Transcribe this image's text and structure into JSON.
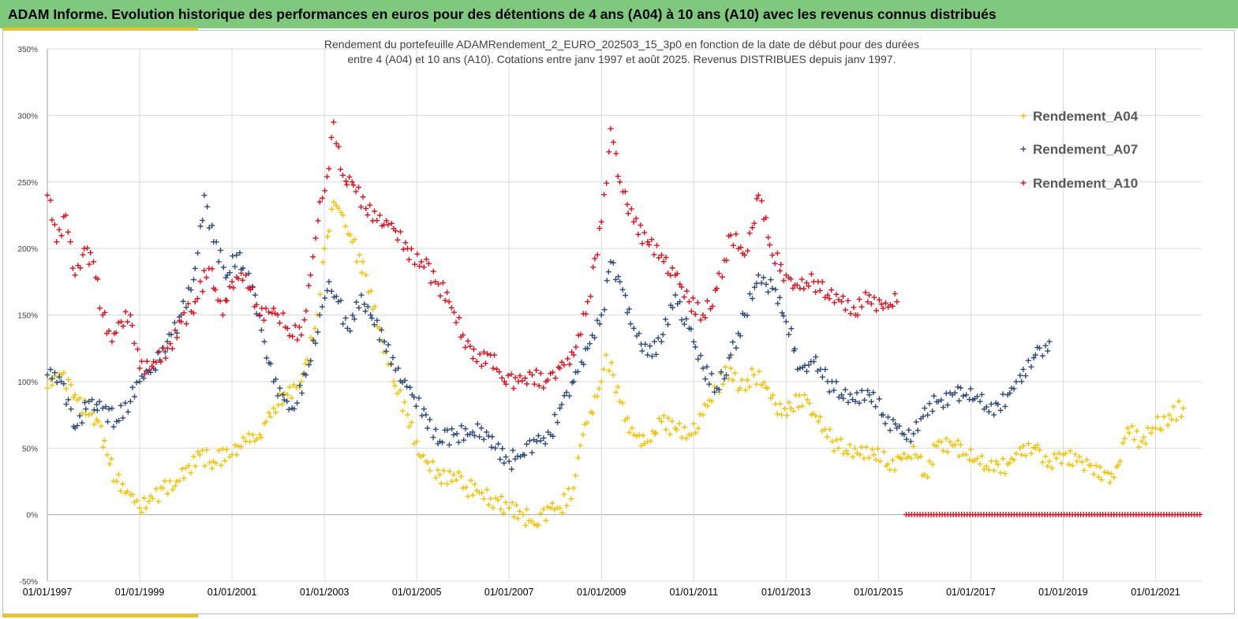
{
  "header": {
    "title": "ADAM Informe. Evolution historique des performances en euros pour des détentions de 4 ans (A04) à 10 ans (A10) avec les revenus connus distribués"
  },
  "colors": {
    "header_bg": "#7ec97e",
    "accent": "#f5c400",
    "a04": "#f2c200",
    "a07": "#2e4a7a",
    "a10": "#e0101f"
  },
  "chart_data": {
    "type": "scatter",
    "title_line1": "Rendement du portefeuille ADAMRendement_2_EURO_202503_15_3p0  en fonction de la date de début pour des durées",
    "title_line2": "entre 4 (A04) et 10 ans (A10). Cotations  entre janv 1997 et août 2025. Revenus DISTRIBUES depuis janv 1997.",
    "marker": "+",
    "x_axis": {
      "type": "date",
      "range": [
        "1997-01-01",
        "2022-01-01"
      ],
      "ticks": [
        "01/01/1997",
        "01/01/1999",
        "01/01/2001",
        "01/01/2003",
        "01/01/2005",
        "01/01/2007",
        "01/01/2009",
        "01/01/2011",
        "01/01/2013",
        "01/01/2015",
        "01/01/2017",
        "01/01/2019",
        "01/01/2021"
      ]
    },
    "y_axis": {
      "range": [
        -50,
        350
      ],
      "unit": "%",
      "ticks": [
        "-50%",
        "0%",
        "50%",
        "100%",
        "150%",
        "200%",
        "250%",
        "300%",
        "350%"
      ]
    },
    "grid": true,
    "legend": {
      "placement": "right",
      "entries": [
        "Rendement_A04",
        "Rendement_A07",
        "Rendement_A10"
      ]
    },
    "series": [
      {
        "name": "Rendement_A04",
        "color": "#f2c200",
        "points": [
          [
            1997.0,
            95
          ],
          [
            1997.3,
            105
          ],
          [
            1997.6,
            90
          ],
          [
            1997.9,
            75
          ],
          [
            1998.1,
            70
          ],
          [
            1998.3,
            45
          ],
          [
            1998.5,
            25
          ],
          [
            1998.8,
            15
          ],
          [
            1999.0,
            5
          ],
          [
            1999.2,
            10
          ],
          [
            1999.5,
            20
          ],
          [
            1999.8,
            25
          ],
          [
            2000.0,
            35
          ],
          [
            2000.3,
            45
          ],
          [
            2000.6,
            40
          ],
          [
            2001.0,
            45
          ],
          [
            2001.3,
            55
          ],
          [
            2001.6,
            60
          ],
          [
            2001.9,
            80
          ],
          [
            2002.2,
            90
          ],
          [
            2002.5,
            100
          ],
          [
            2002.8,
            140
          ],
          [
            2003.0,
            200
          ],
          [
            2003.2,
            235
          ],
          [
            2003.4,
            225
          ],
          [
            2003.6,
            205
          ],
          [
            2003.9,
            180
          ],
          [
            2004.2,
            140
          ],
          [
            2004.5,
            100
          ],
          [
            2004.8,
            75
          ],
          [
            2005.0,
            55
          ],
          [
            2005.2,
            40
          ],
          [
            2005.5,
            30
          ],
          [
            2005.8,
            30
          ],
          [
            2006.0,
            20
          ],
          [
            2006.3,
            18
          ],
          [
            2006.6,
            12
          ],
          [
            2007.0,
            5
          ],
          [
            2007.3,
            0
          ],
          [
            2007.6,
            -8
          ],
          [
            2007.9,
            5
          ],
          [
            2008.1,
            5
          ],
          [
            2008.4,
            20
          ],
          [
            2008.6,
            60
          ],
          [
            2009.0,
            100
          ],
          [
            2009.1,
            120
          ],
          [
            2009.4,
            85
          ],
          [
            2009.7,
            60
          ],
          [
            2010.0,
            55
          ],
          [
            2010.3,
            70
          ],
          [
            2010.6,
            65
          ],
          [
            2010.9,
            60
          ],
          [
            2011.2,
            75
          ],
          [
            2011.5,
            95
          ],
          [
            2011.8,
            110
          ],
          [
            2012.0,
            95
          ],
          [
            2012.3,
            105
          ],
          [
            2012.6,
            95
          ],
          [
            2012.9,
            75
          ],
          [
            2013.1,
            80
          ],
          [
            2013.4,
            90
          ],
          [
            2013.7,
            70
          ],
          [
            2014.0,
            55
          ],
          [
            2014.3,
            48
          ],
          [
            2014.6,
            45
          ],
          [
            2014.9,
            45
          ],
          [
            2015.2,
            38
          ],
          [
            2015.5,
            42
          ],
          [
            2015.8,
            45
          ],
          [
            2016.0,
            30
          ],
          [
            2016.3,
            55
          ],
          [
            2016.6,
            52
          ],
          [
            2016.9,
            45
          ],
          [
            2017.2,
            38
          ],
          [
            2017.5,
            33
          ],
          [
            2017.8,
            38
          ],
          [
            2018.1,
            45
          ],
          [
            2018.4,
            50
          ],
          [
            2018.7,
            40
          ],
          [
            2019.0,
            45
          ],
          [
            2019.3,
            40
          ],
          [
            2019.6,
            37
          ],
          [
            2019.9,
            32
          ],
          [
            2020.1,
            28
          ],
          [
            2020.4,
            65
          ],
          [
            2020.7,
            55
          ],
          [
            2021.0,
            65
          ],
          [
            2021.3,
            75
          ],
          [
            2021.6,
            80
          ]
        ]
      },
      {
        "name": "Rendement_A07",
        "color": "#2e4a7a",
        "points": [
          [
            1997.0,
            105
          ],
          [
            1997.3,
            100
          ],
          [
            1997.6,
            65
          ],
          [
            1997.9,
            85
          ],
          [
            1998.2,
            80
          ],
          [
            1998.5,
            70
          ],
          [
            1998.8,
            85
          ],
          [
            1999.0,
            100
          ],
          [
            1999.3,
            110
          ],
          [
            1999.6,
            130
          ],
          [
            1999.9,
            150
          ],
          [
            2000.2,
            185
          ],
          [
            2000.4,
            240
          ],
          [
            2000.6,
            205
          ],
          [
            2000.9,
            180
          ],
          [
            2001.1,
            195
          ],
          [
            2001.3,
            180
          ],
          [
            2001.5,
            165
          ],
          [
            2001.7,
            130
          ],
          [
            2001.9,
            100
          ],
          [
            2002.1,
            90
          ],
          [
            2002.3,
            80
          ],
          [
            2002.6,
            105
          ],
          [
            2002.9,
            150
          ],
          [
            2003.1,
            175
          ],
          [
            2003.3,
            160
          ],
          [
            2003.5,
            140
          ],
          [
            2003.8,
            165
          ],
          [
            2004.0,
            150
          ],
          [
            2004.3,
            130
          ],
          [
            2004.6,
            110
          ],
          [
            2004.9,
            90
          ],
          [
            2005.2,
            75
          ],
          [
            2005.5,
            55
          ],
          [
            2005.8,
            60
          ],
          [
            2006.1,
            60
          ],
          [
            2006.4,
            65
          ],
          [
            2006.7,
            50
          ],
          [
            2007.0,
            40
          ],
          [
            2007.3,
            45
          ],
          [
            2007.6,
            55
          ],
          [
            2007.9,
            60
          ],
          [
            2008.1,
            80
          ],
          [
            2008.4,
            100
          ],
          [
            2008.7,
            125
          ],
          [
            2009.0,
            150
          ],
          [
            2009.2,
            190
          ],
          [
            2009.4,
            175
          ],
          [
            2009.7,
            140
          ],
          [
            2010.0,
            120
          ],
          [
            2010.3,
            130
          ],
          [
            2010.6,
            165
          ],
          [
            2010.9,
            140
          ],
          [
            2011.2,
            110
          ],
          [
            2011.5,
            95
          ],
          [
            2011.8,
            120
          ],
          [
            2012.1,
            150
          ],
          [
            2012.4,
            180
          ],
          [
            2012.7,
            170
          ],
          [
            2013.0,
            145
          ],
          [
            2013.3,
            110
          ],
          [
            2013.6,
            115
          ],
          [
            2013.9,
            100
          ],
          [
            2014.2,
            90
          ],
          [
            2014.5,
            85
          ],
          [
            2014.8,
            90
          ],
          [
            2015.1,
            75
          ],
          [
            2015.4,
            65
          ],
          [
            2015.7,
            55
          ],
          [
            2016.0,
            80
          ],
          [
            2016.3,
            85
          ],
          [
            2016.6,
            90
          ],
          [
            2016.9,
            90
          ],
          [
            2017.2,
            85
          ],
          [
            2017.5,
            75
          ],
          [
            2017.8,
            90
          ],
          [
            2018.1,
            100
          ],
          [
            2018.4,
            120
          ],
          [
            2018.7,
            130
          ]
        ]
      },
      {
        "name": "Rendement_A10",
        "color": "#e0101f",
        "points": [
          [
            1997.0,
            240
          ],
          [
            1997.2,
            205
          ],
          [
            1997.4,
            225
          ],
          [
            1997.6,
            180
          ],
          [
            1997.8,
            200
          ],
          [
            1998.0,
            190
          ],
          [
            1998.2,
            150
          ],
          [
            1998.4,
            130
          ],
          [
            1998.6,
            145
          ],
          [
            1998.8,
            150
          ],
          [
            1999.0,
            110
          ],
          [
            1999.3,
            115
          ],
          [
            1999.6,
            125
          ],
          [
            1999.9,
            145
          ],
          [
            2000.2,
            160
          ],
          [
            2000.5,
            185
          ],
          [
            2000.8,
            150
          ],
          [
            2001.0,
            175
          ],
          [
            2001.3,
            180
          ],
          [
            2001.6,
            150
          ],
          [
            2001.9,
            155
          ],
          [
            2002.2,
            140
          ],
          [
            2002.5,
            135
          ],
          [
            2002.7,
            180
          ],
          [
            2002.9,
            235
          ],
          [
            2003.1,
            260
          ],
          [
            2003.2,
            295
          ],
          [
            2003.4,
            255
          ],
          [
            2003.6,
            250
          ],
          [
            2003.9,
            230
          ],
          [
            2004.2,
            225
          ],
          [
            2004.5,
            215
          ],
          [
            2004.8,
            200
          ],
          [
            2005.1,
            190
          ],
          [
            2005.4,
            175
          ],
          [
            2005.7,
            160
          ],
          [
            2006.0,
            135
          ],
          [
            2006.3,
            115
          ],
          [
            2006.6,
            120
          ],
          [
            2006.9,
            100
          ],
          [
            2007.2,
            100
          ],
          [
            2007.5,
            105
          ],
          [
            2007.8,
            100
          ],
          [
            2008.1,
            110
          ],
          [
            2008.4,
            120
          ],
          [
            2008.7,
            160
          ],
          [
            2009.0,
            220
          ],
          [
            2009.2,
            290
          ],
          [
            2009.4,
            250
          ],
          [
            2009.7,
            220
          ],
          [
            2010.0,
            205
          ],
          [
            2010.3,
            195
          ],
          [
            2010.6,
            180
          ],
          [
            2010.9,
            160
          ],
          [
            2011.2,
            150
          ],
          [
            2011.5,
            170
          ],
          [
            2011.8,
            210
          ],
          [
            2012.1,
            195
          ],
          [
            2012.4,
            240
          ],
          [
            2012.7,
            195
          ],
          [
            2013.0,
            180
          ],
          [
            2013.3,
            170
          ],
          [
            2013.6,
            175
          ],
          [
            2013.9,
            165
          ],
          [
            2014.2,
            160
          ],
          [
            2014.5,
            150
          ],
          [
            2014.8,
            165
          ],
          [
            2015.1,
            155
          ],
          [
            2015.4,
            160
          ]
        ]
      },
      {
        "name": "",
        "color": "#e0101f",
        "zero_line": {
          "x_range": [
            2015.6,
            2022.0
          ],
          "y": 0
        }
      }
    ]
  }
}
